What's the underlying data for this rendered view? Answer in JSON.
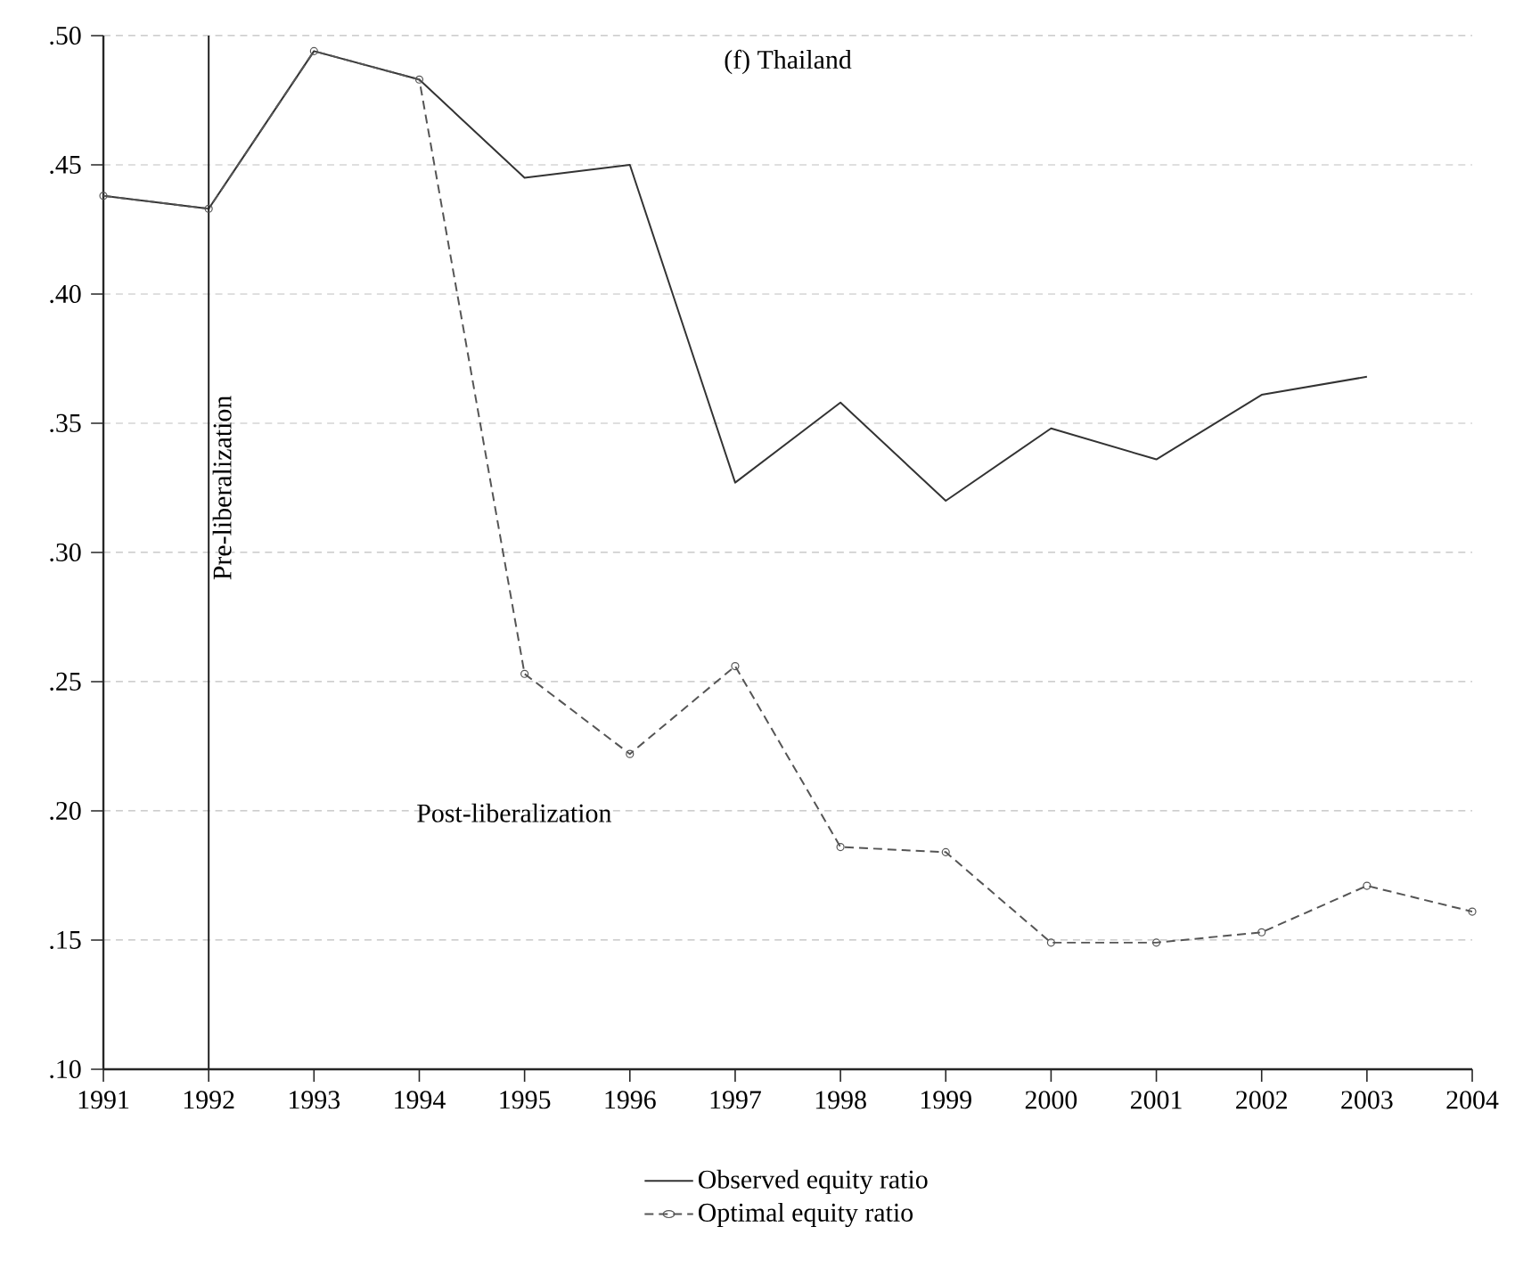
{
  "chart_data": {
    "type": "line",
    "title": "(f) Thailand",
    "x": [
      1991,
      1992,
      1993,
      1994,
      1995,
      1996,
      1997,
      1998,
      1999,
      2000,
      2001,
      2002,
      2003,
      2004
    ],
    "series": [
      {
        "name": "Observed equity ratio",
        "color": "#333333",
        "line_style": "solid",
        "marker": "none",
        "values": [
          0.438,
          0.433,
          0.494,
          0.483,
          0.445,
          0.45,
          0.327,
          0.358,
          0.32,
          0.348,
          0.336,
          0.361,
          0.368,
          null
        ]
      },
      {
        "name": "Optimal equity ratio",
        "color": "#555555",
        "line_style": "dashed",
        "marker": "circle",
        "values": [
          0.438,
          0.433,
          0.494,
          0.483,
          0.253,
          0.222,
          0.256,
          0.186,
          0.184,
          0.149,
          0.149,
          0.153,
          0.171,
          0.161
        ]
      }
    ],
    "xlim": [
      1991,
      2004
    ],
    "ylim": [
      0.1,
      0.5
    ],
    "xticks": [
      1991,
      1992,
      1993,
      1994,
      1995,
      1996,
      1997,
      1998,
      1999,
      2000,
      2001,
      2002,
      2003,
      2004
    ],
    "yticks": [
      {
        "value": 0.1,
        "label": ".10"
      },
      {
        "value": 0.15,
        "label": ".15"
      },
      {
        "value": 0.2,
        "label": ".20"
      },
      {
        "value": 0.25,
        "label": ".25"
      },
      {
        "value": 0.3,
        "label": ".30"
      },
      {
        "value": 0.35,
        "label": ".35"
      },
      {
        "value": 0.4,
        "label": ".40"
      },
      {
        "value": 0.45,
        "label": ".45"
      },
      {
        "value": 0.5,
        "label": ".50"
      }
    ],
    "ref_lines": [
      {
        "axis": "x",
        "value": 1992,
        "label": "Pre-liberalization",
        "color": "#222222",
        "line_style": "solid"
      }
    ],
    "annotations": [
      "Post-liberalization"
    ],
    "grid": "y",
    "legend": "bottom"
  }
}
